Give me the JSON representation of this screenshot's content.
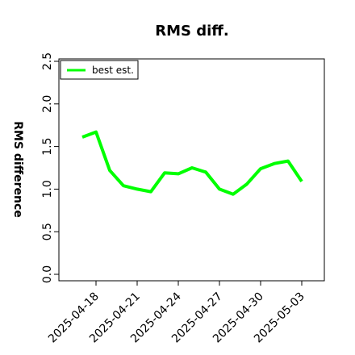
{
  "chart_data": {
    "type": "line",
    "title": "RMS diff.",
    "xlabel": "",
    "ylabel": "RMS difference",
    "ylim": [
      0,
      2.5
    ],
    "yticks": [
      "0.0",
      "0.5",
      "1.0",
      "1.5",
      "2.0",
      "2.5"
    ],
    "xticks": [
      "2025-04-18",
      "2025-04-21",
      "2025-04-24",
      "2025-04-27",
      "2025-04-30",
      "2025-05-03"
    ],
    "x": [
      "2025-04-17",
      "2025-04-18",
      "2025-04-19",
      "2025-04-20",
      "2025-04-21",
      "2025-04-22",
      "2025-04-23",
      "2025-04-24",
      "2025-04-25",
      "2025-04-26",
      "2025-04-27",
      "2025-04-28",
      "2025-04-29",
      "2025-04-30",
      "2025-05-01",
      "2025-05-02",
      "2025-05-03"
    ],
    "series": [
      {
        "name": "best est.",
        "color": "#00ff00",
        "values": [
          1.61,
          1.67,
          1.22,
          1.04,
          1.0,
          0.97,
          1.19,
          1.18,
          1.25,
          1.2,
          1.0,
          0.94,
          1.06,
          1.24,
          1.3,
          1.33,
          1.09
        ]
      }
    ],
    "legend": "top-left",
    "grid": false
  }
}
